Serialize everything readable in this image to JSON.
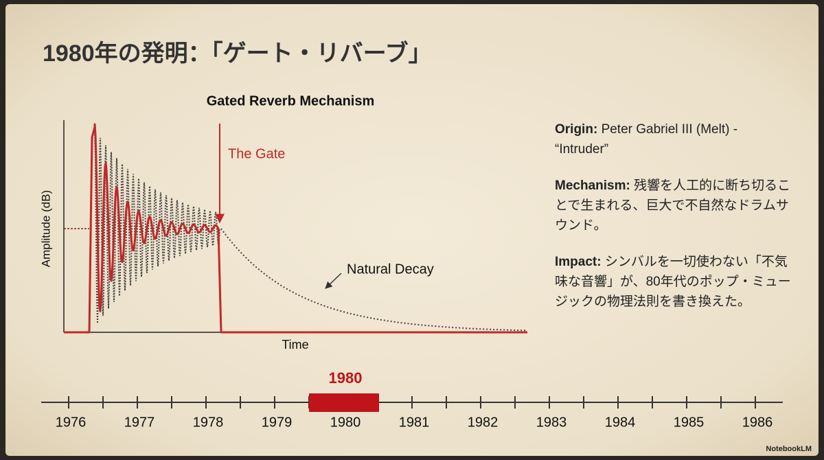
{
  "title": "1980年の発明：「ゲート・リバーブ」",
  "diagram": {
    "title": "Gated Reverb Mechanism",
    "y_axis_label": "Amplitude (dB)",
    "x_axis_label": "Time",
    "gate_label": "The Gate",
    "decay_label": "Natural Decay"
  },
  "notes": [
    {
      "label": "Origin:",
      "text": "Peter Gabriel III (Melt) - “Intruder”"
    },
    {
      "label": "Mechanism:",
      "text": "残響を人工的に断ち切ることで生まれる、巨大で不自然なドラムサウンド。"
    },
    {
      "label": "Impact:",
      "text": "シンバルを一切使わない「不気味な音響」が、80年代のポップ・ミュージックの物理法則を書き換えた。"
    }
  ],
  "timeline": {
    "highlight": "1980",
    "labels": [
      "1976",
      "1977",
      "1978",
      "1979",
      "1980",
      "1981",
      "1982",
      "1983",
      "1984",
      "1985",
      "1986"
    ]
  },
  "watermark": "NotebookLM"
}
